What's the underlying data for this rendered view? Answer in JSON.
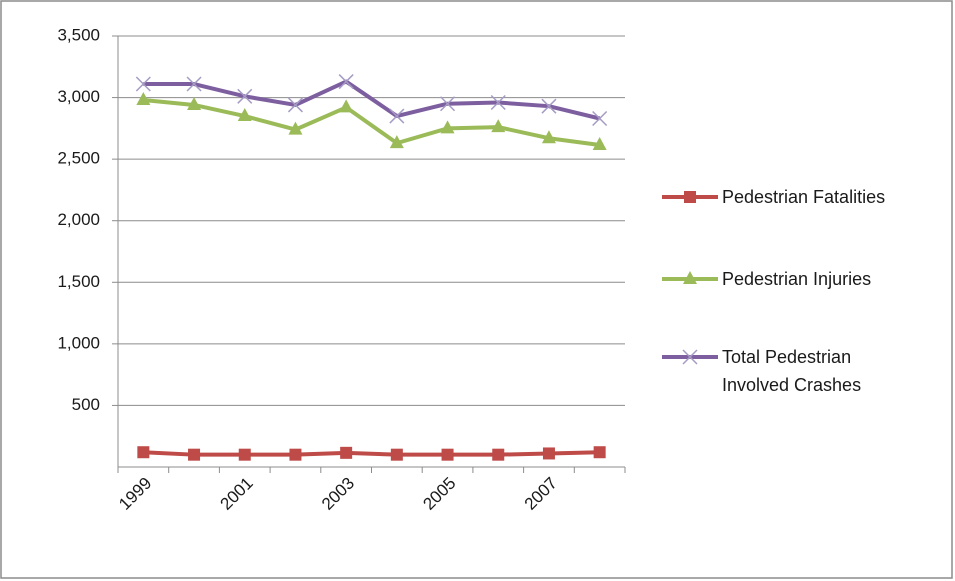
{
  "chart_data": {
    "type": "line",
    "categories": [
      "1999",
      null,
      "2001",
      null,
      "2003",
      null,
      "2005",
      null,
      "2007",
      null
    ],
    "series": [
      {
        "name": "Pedestrian Fatalities",
        "color": "#be4b48",
        "marker": "square",
        "values": [
          120,
          100,
          100,
          100,
          115,
          100,
          100,
          100,
          110,
          120
        ]
      },
      {
        "name": "Pedestrian Injuries",
        "color": "#9bbb59",
        "marker": "triangle",
        "values": [
          2980,
          2940,
          2850,
          2740,
          2920,
          2630,
          2750,
          2760,
          2670,
          2615
        ]
      },
      {
        "name": "Total Pedestrian Involved Crashes",
        "color": "#7d5fa0",
        "marker": "x",
        "values": [
          3110,
          3110,
          3010,
          2940,
          3130,
          2850,
          2950,
          2960,
          2930,
          2830
        ]
      }
    ],
    "ylim": [
      0,
      3500
    ],
    "yticks": [
      500,
      {
        "value": 1000,
        "label": "1,000"
      },
      {
        "value": 1500,
        "label": "1,500"
      },
      {
        "value": 2000,
        "label": "2,000"
      },
      {
        "value": 2500,
        "label": "2,500"
      },
      {
        "value": 3000,
        "label": "3,000"
      },
      {
        "value": 3500,
        "label": "3,500"
      }
    ],
    "grid": true,
    "legend": "right"
  }
}
